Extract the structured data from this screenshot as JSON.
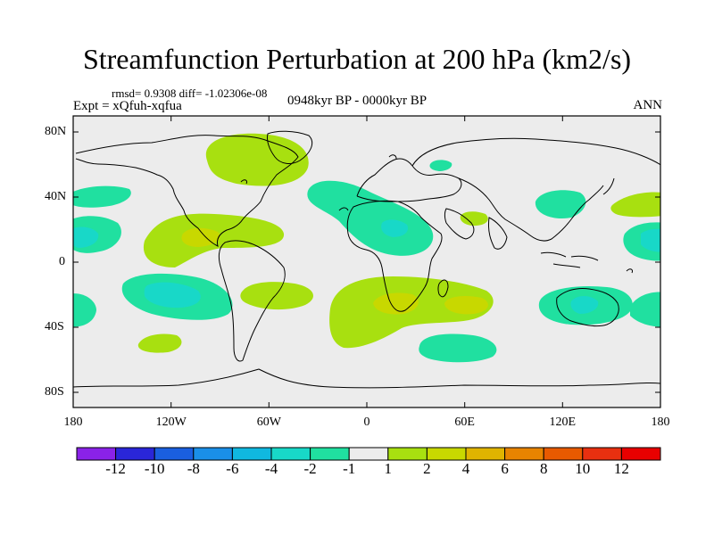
{
  "title": "Streamfunction Perturbation at 200 hPa (km2/s)",
  "stats": {
    "rmsd": "rmsd= 0.9308",
    "diff": "diff= -1.02306e-08"
  },
  "experiment": "Expt = xQfuh-xqfua",
  "period": "0948kyr BP - 0000kyr BP",
  "season": "ANN",
  "chart_data": {
    "type": "filled-contour-map",
    "variable": "200 hPa streamfunction perturbation",
    "units": "km2/s",
    "projection": "cylindrical-equidistant",
    "lon_range": [
      -180,
      180
    ],
    "lat_range": [
      -90,
      90
    ],
    "lat_ticks": [
      "80N",
      "40N",
      "0",
      "40S",
      "80S"
    ],
    "lon_ticks": [
      "180",
      "120W",
      "60W",
      "0",
      "60E",
      "120E",
      "180"
    ],
    "contour_levels": [
      -12,
      -10,
      -8,
      -6,
      -4,
      -2,
      -1,
      1,
      2,
      4,
      6,
      8,
      10,
      12
    ],
    "colorbar_labels": [
      "-12",
      "-10",
      "-8",
      "-6",
      "-4",
      "-2",
      "-1",
      "1",
      "2",
      "4",
      "6",
      "8",
      "10",
      "12"
    ],
    "colorbar_colors": [
      "#8a22e8",
      "#2a26d8",
      "#1a5fe0",
      "#1a8fe8",
      "#10b8e0",
      "#18d8c8",
      "#20e0a0",
      "#ececec",
      "#a8e010",
      "#c8d800",
      "#e0b400",
      "#e88400",
      "#e85a00",
      "#e83010",
      "#e80000"
    ],
    "background_color": "#ececec"
  }
}
